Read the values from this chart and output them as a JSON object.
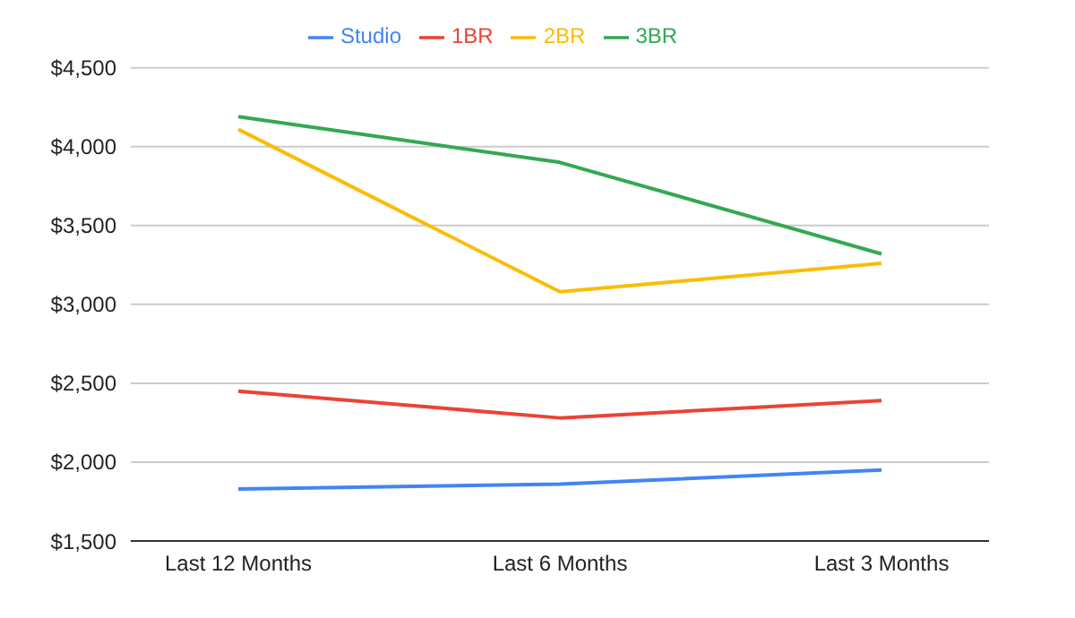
{
  "chart_data": {
    "type": "line",
    "categories": [
      "Last 12 Months",
      "Last 6 Months",
      "Last 3 Months"
    ],
    "series": [
      {
        "name": "Studio",
        "color": "#4285f4",
        "values": [
          1830,
          1860,
          1950
        ]
      },
      {
        "name": "1BR",
        "color": "#ea4335",
        "values": [
          2450,
          2280,
          2390
        ]
      },
      {
        "name": "2BR",
        "color": "#fbbc04",
        "values": [
          4110,
          3080,
          3260
        ]
      },
      {
        "name": "3BR",
        "color": "#34a853",
        "values": [
          4190,
          3900,
          3320
        ]
      }
    ],
    "ylim": [
      1500,
      4500
    ],
    "yticks": [
      {
        "value": 1500,
        "label": "$1,500"
      },
      {
        "value": 2000,
        "label": "$2,000"
      },
      {
        "value": 2500,
        "label": "$2,500"
      },
      {
        "value": 3000,
        "label": "$3,000"
      },
      {
        "value": 3500,
        "label": "$3,500"
      },
      {
        "value": 4000,
        "label": "$4,000"
      },
      {
        "value": 4500,
        "label": "$4,500"
      }
    ],
    "grid": "y",
    "legend": "top",
    "marker": "none",
    "line_style": "solid"
  }
}
